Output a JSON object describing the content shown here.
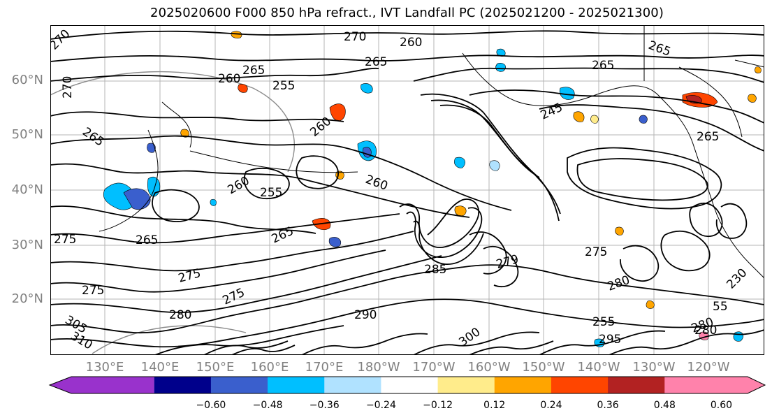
{
  "title": "2025020600 F000 850 hPa refract., IVT Landfall PC (2025021200 - 2025021300)",
  "lat_labels": [
    "60°N",
    "50°N",
    "40°N",
    "30°N",
    "20°N"
  ],
  "lon_labels": [
    "130°E",
    "140°E",
    "150°E",
    "160°E",
    "170°E",
    "180°W",
    "170°W",
    "160°W",
    "150°W",
    "140°W",
    "130°W",
    "120°W"
  ],
  "colorbar": {
    "colors": [
      "#9932cc",
      "#00008b",
      "#3a5fcd",
      "#00bfff",
      "#b0e2ff",
      "#ffffff",
      "#ffec8b",
      "#ffa500",
      "#ff4500",
      "#b22222",
      "#ff82ab"
    ],
    "ticks": [
      "−0.60",
      "−0.48",
      "−0.36",
      "−0.24",
      "−0.12",
      "0.12",
      "0.24",
      "0.36",
      "0.48",
      "0.60"
    ]
  },
  "contour_labels": [
    "270",
    "260",
    "265",
    "255",
    "270",
    "265",
    "260",
    "265",
    "260",
    "270",
    "245",
    "265",
    "265",
    "265",
    "260",
    "255",
    "260",
    "265",
    "265",
    "275",
    "279",
    "275",
    "275",
    "280",
    "275",
    "280",
    "275",
    "290",
    "305",
    "310",
    "255",
    "280",
    "285",
    "295",
    "300",
    "230",
    "55",
    "280"
  ]
}
